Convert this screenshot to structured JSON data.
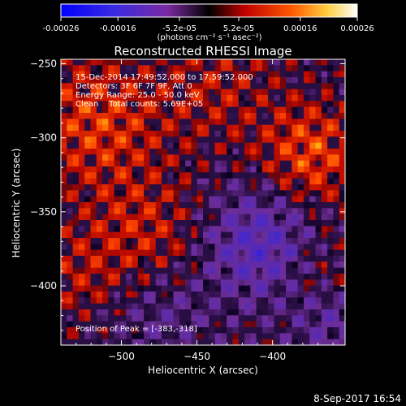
{
  "colorbar": {
    "ticks": [
      "-0.00026",
      "-0.00016",
      "-5.2e-05",
      "5.2e-05",
      "0.00016",
      "0.00026"
    ],
    "tick_values": [
      -0.00026,
      -0.00016,
      -5.2e-05,
      5.2e-05,
      0.00016,
      0.00026
    ],
    "range": [
      -0.00026,
      0.00026
    ],
    "units_label": "(photons cm⁻² s⁻¹ asec⁻²)"
  },
  "chart_data": {
    "type": "heatmap",
    "title": "Reconstructed RHESSI Image",
    "xlabel": "Heliocentric X (arcsec)",
    "ylabel": "Heliocentric Y (arcsec)",
    "xlim": [
      -540,
      -352
    ],
    "ylim": [
      -440,
      -247
    ],
    "xticks": [
      -500,
      -450,
      -400
    ],
    "yticks": [
      -250,
      -300,
      -350,
      -400
    ],
    "xtick_labels": [
      "−500",
      "−450",
      "−400"
    ],
    "ytick_labels": [
      "−250",
      "−300",
      "−350",
      "−400"
    ],
    "peak_x": -383,
    "peak_y": -318,
    "grid": false,
    "colormap": [
      "#000000",
      "#2020ff",
      "#6a2fb0",
      "#000000",
      "#c00000",
      "#ff3000",
      "#ffa000",
      "#ffff80",
      "#ffffff"
    ],
    "annotations": [
      "15-Dec-2014 17:49:52.000 to 17:59:52.000",
      "Detectors: 3F 6F 7F 9F, Att 0",
      "Energy Range: 25.0 - 50.0 keV",
      "Clean    Total counts: 5.69E+05"
    ],
    "peak_label": "Position of Peak = [-383,-318]"
  },
  "footer": {
    "timestamp": "8-Sep-2017 16:54"
  }
}
